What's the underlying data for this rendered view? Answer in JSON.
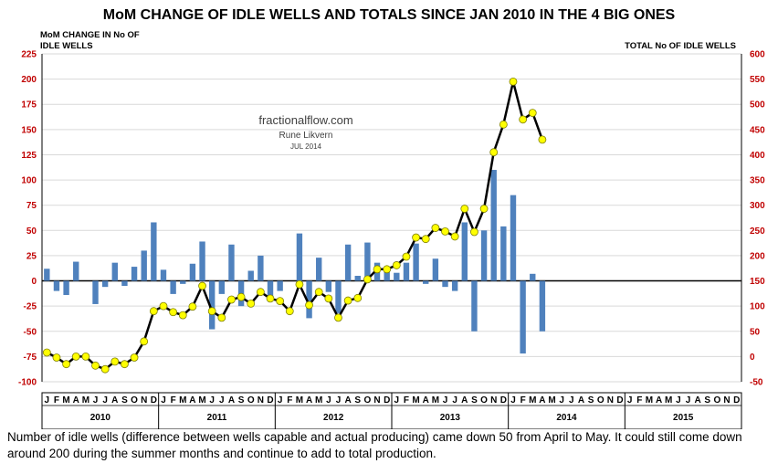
{
  "chart_data": {
    "type": "bar+line",
    "title": "MoM CHANGE OF IDLE WELLS AND TOTALS SINCE JAN 2010 IN THE 4 BIG ONES",
    "ylabel_left": [
      "MoM CHANGE IN No OF",
      "IDLE WELLS"
    ],
    "ylabel_right": "TOTAL No OF IDLE WELLS",
    "ylim_left": [
      -100,
      225
    ],
    "ylim_right": [
      -50,
      600
    ],
    "left_ticks": [
      -100,
      -75,
      -50,
      -25,
      0,
      25,
      50,
      75,
      100,
      125,
      150,
      175,
      200,
      225
    ],
    "right_ticks": [
      -50,
      0,
      50,
      100,
      150,
      200,
      250,
      300,
      350,
      400,
      450,
      500,
      550,
      600
    ],
    "years": [
      "2010",
      "2011",
      "2012",
      "2013",
      "2014",
      "2015"
    ],
    "month_letters": [
      "J",
      "F",
      "M",
      "A",
      "M",
      "J",
      "J",
      "A",
      "S",
      "O",
      "N",
      "D"
    ],
    "series": [
      {
        "name": "MoM change",
        "type": "bar",
        "axis": "left",
        "color": "#4f81bd",
        "values": [
          12,
          -10,
          -14,
          19,
          0,
          -23,
          -6,
          18,
          -5,
          14,
          30,
          58,
          11,
          -13,
          -3,
          17,
          39,
          -48,
          -13,
          36,
          -25,
          10,
          25,
          -15,
          -10,
          0,
          47,
          -37,
          23,
          -11,
          -32,
          36,
          5,
          38,
          18,
          13,
          8,
          18,
          37,
          -3,
          22,
          -6,
          -10,
          58,
          -50,
          50,
          110,
          54,
          85,
          -72,
          7,
          -50
        ]
      },
      {
        "name": "Total idle wells",
        "type": "line",
        "axis": "right",
        "color": "#000000",
        "marker_color": "#ffff00",
        "values": [
          8,
          -2,
          -15,
          0,
          0,
          -18,
          -25,
          -10,
          -15,
          -2,
          30,
          90,
          100,
          88,
          82,
          99,
          140,
          90,
          77,
          113,
          118,
          105,
          128,
          115,
          110,
          90,
          143,
          102,
          128,
          115,
          77,
          111,
          116,
          153,
          173,
          173,
          181,
          198,
          236,
          233,
          255,
          248,
          238,
          293,
          247,
          293,
          405,
          460,
          545,
          470,
          483,
          430
        ]
      }
    ],
    "watermark": [
      "fractionalflow.com",
      "Rune Likvern",
      "JUL 2014"
    ]
  },
  "caption": "Number of idle wells (difference between wells capable and actual producing) came down 50 from April to May.  It could still come down around 200 during the summer months and continue to add to total production."
}
